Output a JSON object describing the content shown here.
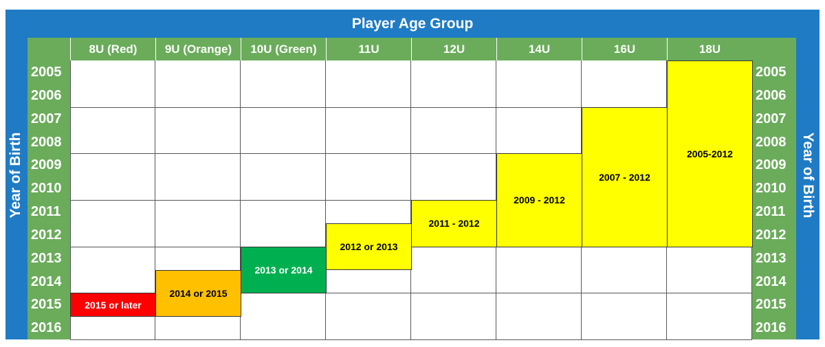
{
  "header": {
    "title": "Player Age Group",
    "left_label": "Year of Birth",
    "right_label": "Year of Birth"
  },
  "columns": [
    "8U (Red)",
    "9U (Orange)",
    "10U (Green)",
    "11U",
    "12U",
    "14U",
    "16U",
    "18U"
  ],
  "years": [
    "2005",
    "2006",
    "2007",
    "2008",
    "2009",
    "2010",
    "2011",
    "2012",
    "2013",
    "2014",
    "2015",
    "2016"
  ],
  "blocks": [
    "2015 or later",
    "2014 or 2015",
    "2013 or 2014",
    "2012 or 2013",
    "2011 - 2012",
    "2009 - 2012",
    "2007 - 2012",
    "2005-2012"
  ]
}
